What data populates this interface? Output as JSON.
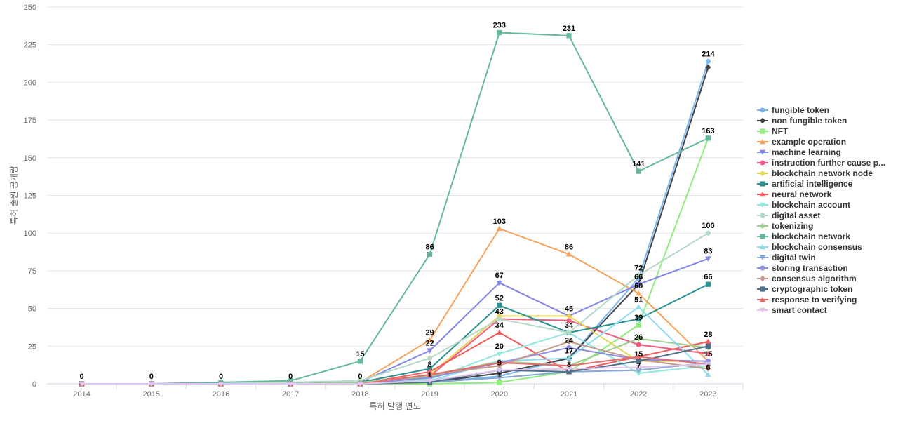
{
  "chart_data": {
    "type": "line",
    "title": "",
    "xlabel": "특허 발행 연도",
    "ylabel": "특허 출원 공개량",
    "ylim": [
      0,
      250
    ],
    "yticks": [
      0,
      25,
      50,
      75,
      100,
      125,
      150,
      175,
      200,
      225,
      250
    ],
    "grid": true,
    "legend_position": "right",
    "x": [
      "2014",
      "2015",
      "2016",
      "2017",
      "2018",
      "2019",
      "2020",
      "2021",
      "2022",
      "2023"
    ],
    "series": [
      {
        "name": "fungible token",
        "color": "#7cb5ec",
        "marker": "circle",
        "values": [
          0,
          0,
          0,
          0,
          0,
          1,
          5,
          17,
          70,
          214
        ]
      },
      {
        "name": "non fungible token",
        "color": "#434348",
        "marker": "diamond",
        "values": [
          0,
          0,
          0,
          0,
          0,
          1,
          7,
          17,
          66,
          210
        ]
      },
      {
        "name": "NFT",
        "color": "#90ed7d",
        "marker": "square",
        "values": [
          0,
          0,
          0,
          0,
          0,
          0,
          1,
          8,
          39,
          163
        ]
      },
      {
        "name": "example operation",
        "color": "#f7a35c",
        "marker": "triangle",
        "values": [
          0,
          0,
          0,
          0,
          1,
          29,
          103,
          86,
          60,
          15
        ]
      },
      {
        "name": "machine learning",
        "color": "#8085e9",
        "marker": "triangle-down",
        "values": [
          0,
          0,
          0,
          0,
          1,
          22,
          67,
          45,
          66,
          83
        ]
      },
      {
        "name": "instruction further cause p...",
        "color": "#f15c80",
        "marker": "circle",
        "values": [
          0,
          0,
          0,
          0,
          0,
          5,
          43,
          42,
          26,
          20
        ]
      },
      {
        "name": "blockchain network node",
        "color": "#e4d354",
        "marker": "diamond",
        "values": [
          0,
          0,
          0,
          0,
          0,
          6,
          45,
          45,
          15,
          15
        ]
      },
      {
        "name": "artificial intelligence",
        "color": "#2b908f",
        "marker": "square",
        "values": [
          0,
          0,
          0,
          0,
          1,
          10,
          52,
          34,
          43,
          66
        ]
      },
      {
        "name": "neural network",
        "color": "#f45b5b",
        "marker": "triangle",
        "values": [
          0,
          0,
          0,
          0,
          0,
          8,
          34,
          8,
          18,
          28
        ]
      },
      {
        "name": "blockchain account",
        "color": "#91e8e1",
        "marker": "triangle-down",
        "values": [
          0,
          0,
          0,
          0,
          0,
          3,
          20,
          34,
          7,
          12
        ]
      },
      {
        "name": "digital asset",
        "color": "#b5d9c4",
        "marker": "circle",
        "values": [
          0,
          0,
          1,
          1,
          2,
          17,
          43,
          34,
          72,
          100
        ]
      },
      {
        "name": "tokenizing",
        "color": "#9ccf8c",
        "marker": "diamond",
        "values": [
          0,
          0,
          0,
          0,
          1,
          5,
          15,
          12,
          30,
          24
        ]
      },
      {
        "name": "blockchain network",
        "color": "#64b89e",
        "marker": "square",
        "values": [
          0,
          0,
          1,
          2,
          15,
          86,
          233,
          231,
          141,
          163
        ]
      },
      {
        "name": "blockchain consensus",
        "color": "#8fdced",
        "marker": "triangle",
        "values": [
          0,
          0,
          0,
          0,
          0,
          2,
          15,
          17,
          51,
          6
        ]
      },
      {
        "name": "digital twin",
        "color": "#85a8d4",
        "marker": "triangle-down",
        "values": [
          0,
          0,
          0,
          0,
          0,
          1,
          4,
          8,
          9,
          14
        ]
      },
      {
        "name": "storing transaction",
        "color": "#8c8ce0",
        "marker": "circle",
        "values": [
          0,
          0,
          0,
          0,
          0,
          4,
          14,
          24,
          16,
          15
        ]
      },
      {
        "name": "consensus algorithm",
        "color": "#c49a8a",
        "marker": "diamond",
        "values": [
          0,
          0,
          0,
          0,
          0,
          6,
          12,
          28,
          16,
          10
        ]
      },
      {
        "name": "cryptographic token",
        "color": "#4c6f8c",
        "marker": "square",
        "values": [
          0,
          0,
          0,
          0,
          0,
          1,
          9,
          8,
          15,
          25
        ]
      },
      {
        "name": "response to verifying",
        "color": "#e66a6a",
        "marker": "triangle",
        "values": [
          0,
          0,
          0,
          0,
          0,
          6,
          14,
          12,
          18,
          13
        ]
      },
      {
        "name": "smart contact",
        "color": "#e0c6ee",
        "marker": "triangle-down",
        "values": [
          0,
          0,
          0,
          0,
          0,
          2,
          9,
          10,
          11,
          13
        ]
      }
    ],
    "data_labels": [
      {
        "x": "2014",
        "value": 0,
        "text": "0"
      },
      {
        "x": "2015",
        "value": 0,
        "text": "0"
      },
      {
        "x": "2016",
        "value": 0,
        "text": "0"
      },
      {
        "x": "2017",
        "value": 0,
        "text": "0"
      },
      {
        "x": "2018",
        "value": 15,
        "text": "15"
      },
      {
        "x": "2018",
        "value": 0,
        "text": "0"
      },
      {
        "x": "2019",
        "value": 86,
        "text": "86"
      },
      {
        "x": "2019",
        "value": 29,
        "text": "29"
      },
      {
        "x": "2019",
        "value": 22,
        "text": "22"
      },
      {
        "x": "2019",
        "value": 8,
        "text": "8"
      },
      {
        "x": "2019",
        "value": 1,
        "text": "1"
      },
      {
        "x": "2020",
        "value": 233,
        "text": "233"
      },
      {
        "x": "2020",
        "value": 103,
        "text": "103"
      },
      {
        "x": "2020",
        "value": 67,
        "text": "67"
      },
      {
        "x": "2020",
        "value": 52,
        "text": "52"
      },
      {
        "x": "2020",
        "value": 43,
        "text": "43"
      },
      {
        "x": "2020",
        "value": 34,
        "text": "34"
      },
      {
        "x": "2020",
        "value": 20,
        "text": "20"
      },
      {
        "x": "2020",
        "value": 9,
        "text": "9"
      },
      {
        "x": "2020",
        "value": 1,
        "text": "1"
      },
      {
        "x": "2021",
        "value": 231,
        "text": "231"
      },
      {
        "x": "2021",
        "value": 86,
        "text": "86"
      },
      {
        "x": "2021",
        "value": 45,
        "text": "45"
      },
      {
        "x": "2021",
        "value": 34,
        "text": "34"
      },
      {
        "x": "2021",
        "value": 24,
        "text": "24"
      },
      {
        "x": "2021",
        "value": 17,
        "text": "17"
      },
      {
        "x": "2021",
        "value": 8,
        "text": "8"
      },
      {
        "x": "2022",
        "value": 141,
        "text": "141"
      },
      {
        "x": "2022",
        "value": 72,
        "text": "72"
      },
      {
        "x": "2022",
        "value": 66,
        "text": "66"
      },
      {
        "x": "2022",
        "value": 60,
        "text": "60"
      },
      {
        "x": "2022",
        "value": 51,
        "text": "51"
      },
      {
        "x": "2022",
        "value": 39,
        "text": "39"
      },
      {
        "x": "2022",
        "value": 26,
        "text": "26"
      },
      {
        "x": "2022",
        "value": 15,
        "text": "15"
      },
      {
        "x": "2022",
        "value": 7,
        "text": "7"
      },
      {
        "x": "2023",
        "value": 214,
        "text": "214"
      },
      {
        "x": "2023",
        "value": 163,
        "text": "163"
      },
      {
        "x": "2023",
        "value": 100,
        "text": "100"
      },
      {
        "x": "2023",
        "value": 83,
        "text": "83"
      },
      {
        "x": "2023",
        "value": 66,
        "text": "66"
      },
      {
        "x": "2023",
        "value": 28,
        "text": "28"
      },
      {
        "x": "2023",
        "value": 15,
        "text": "15"
      },
      {
        "x": "2023",
        "value": 6,
        "text": "6"
      }
    ]
  }
}
